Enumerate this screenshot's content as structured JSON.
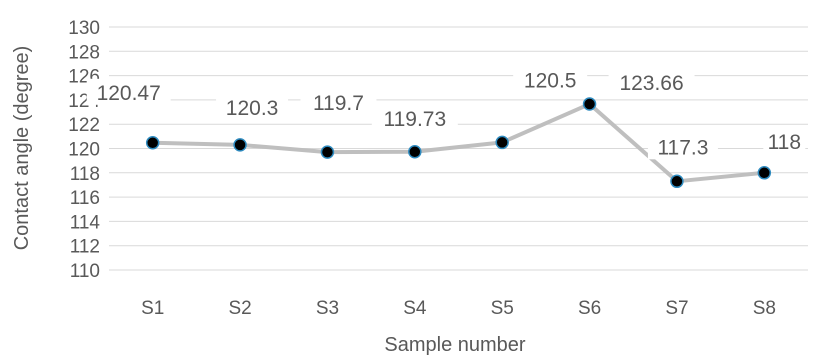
{
  "chart_data": {
    "type": "line",
    "title": "",
    "xlabel": "Sample number",
    "ylabel": "Contact angle (degree)",
    "categories": [
      "S1",
      "S2",
      "S3",
      "S4",
      "S5",
      "S6",
      "S7",
      "S8"
    ],
    "series": [
      {
        "values": [
          120.47,
          120.3,
          119.7,
          119.73,
          120.5,
          123.66,
          117.3,
          118
        ],
        "labels": [
          "120.47",
          "120.3",
          "119.7",
          "119.73",
          "120.5",
          "123.66",
          "117.3",
          "118"
        ]
      }
    ],
    "ylim": [
      110,
      130
    ],
    "yticks": [
      110,
      112,
      114,
      116,
      118,
      120,
      122,
      124,
      126,
      128,
      130
    ],
    "grid": true,
    "legend": "none",
    "colors": {
      "line": "#bfbfbf",
      "marker_fill": "#000000",
      "marker_edge": "#2e8bc0",
      "grid": "#d9d9d9",
      "text": "#595959"
    }
  }
}
